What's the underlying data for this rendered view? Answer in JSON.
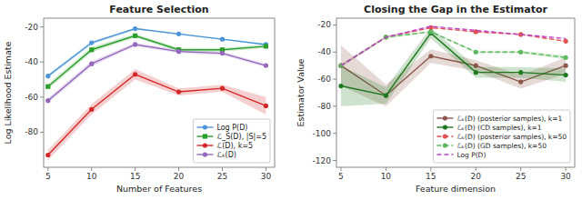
{
  "chart_data": [
    {
      "type": "line",
      "title": "Feature Selection",
      "x_label": "Number of Features",
      "y_label": "Log Likelihood Estimate",
      "x": [
        5,
        10,
        15,
        20,
        25,
        30
      ],
      "xlim": [
        4.5,
        31
      ],
      "xticks": [
        5,
        10,
        15,
        20,
        25,
        30
      ],
      "ylim": [
        -100,
        -15
      ],
      "yticks": [
        -20,
        -40,
        -60,
        -80
      ],
      "grid": false,
      "legend": "lower right",
      "series": [
        {
          "name": "Log P(D)",
          "color": "#4c96d7",
          "marker": "circle",
          "line_style": "solid",
          "values": [
            -48,
            -29,
            -21,
            -24,
            -27,
            -30
          ],
          "errors": [
            1.0,
            1.0,
            0.5,
            0.5,
            0.5,
            0.5
          ]
        },
        {
          "name": "ℒ_S(D), |S|=5",
          "color": "#2ca02c",
          "marker": "square",
          "line_style": "solid",
          "values": [
            -54,
            -33,
            -25,
            -33,
            -33,
            -31
          ],
          "errors": [
            1.5,
            1.5,
            1.0,
            1.0,
            1.0,
            1.0
          ]
        },
        {
          "name": "ℒ(D), k=5",
          "color": "#d62728",
          "marker": "circle",
          "line_style": "solid",
          "values": [
            -93,
            -67,
            -47,
            -57,
            -55,
            -65
          ],
          "errors": [
            3.0,
            3.0,
            3.0,
            2.0,
            2.0,
            5.0
          ]
        },
        {
          "name": "ℒₖ(D)",
          "color": "#9467bd",
          "marker": "circle",
          "line_style": "solid",
          "values": [
            -62,
            -41,
            -30,
            -34,
            -35,
            -42
          ],
          "errors": [
            1.5,
            1.5,
            1.0,
            1.0,
            1.0,
            1.0
          ]
        }
      ]
    },
    {
      "type": "line",
      "title": "Closing the Gap in the Estimator",
      "x_label": "Feature dimension",
      "y_label": "Estimator Value",
      "x": [
        5,
        10,
        15,
        20,
        25,
        30
      ],
      "xlim": [
        4.5,
        31
      ],
      "xticks": [
        5,
        10,
        15,
        20,
        25,
        30
      ],
      "ylim": [
        -125,
        -15
      ],
      "yticks": [
        -20,
        -40,
        -60,
        -80,
        -100,
        -120
      ],
      "grid": false,
      "legend": "lower right",
      "series": [
        {
          "name": "ℒₖ(D) (posterior samples), k=1",
          "color": "#8c564b",
          "marker": "circle",
          "line_style": "solid",
          "values": [
            -50,
            -72,
            -43,
            -50,
            -62,
            -50
          ],
          "errors": [
            15,
            8,
            5,
            4,
            5,
            6
          ]
        },
        {
          "name": "ℒₖ(D) (CD samples), k=1",
          "color": "#1f7a1f",
          "marker": "circle",
          "line_style": "solid",
          "values": [
            -65,
            -72,
            -26,
            -55,
            -55,
            -57
          ],
          "errors": [
            15,
            6,
            4,
            4,
            4,
            5
          ]
        },
        {
          "name": "ℒₖ(D) (posterior samples), k=50",
          "color": "#e05050",
          "marker": "circle",
          "line_style": "dashed",
          "values": [
            -50,
            -29,
            -22,
            -25,
            -27,
            -32
          ],
          "errors": [
            1.0,
            1.0,
            0.5,
            0.5,
            0.5,
            0.5
          ]
        },
        {
          "name": "ℒₖ(D) (GD samples), k=50",
          "color": "#5cb85c",
          "marker": "circle",
          "line_style": "dashed",
          "values": [
            -50,
            -29,
            -25,
            -40,
            -40,
            -44
          ],
          "errors": [
            1.0,
            1.0,
            0.5,
            1.0,
            1.0,
            1.5
          ]
        },
        {
          "name": "Log P(D)",
          "color": "#bb44cc",
          "marker": "none",
          "line_style": "dashed",
          "values": [
            -50,
            -29,
            -21,
            -24,
            -27,
            -30
          ],
          "errors": [
            0.5,
            0.5,
            0.3,
            0.3,
            0.3,
            0.3
          ]
        }
      ]
    }
  ]
}
